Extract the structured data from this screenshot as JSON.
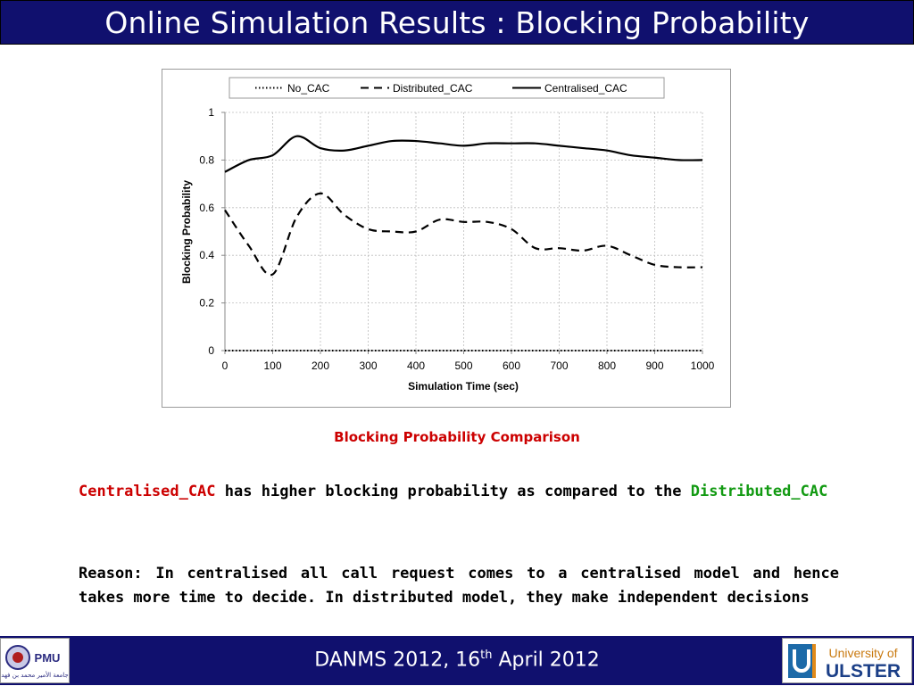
{
  "slide": {
    "title": "Online Simulation Results : Blocking Probability",
    "caption": "Blocking Probability Comparison",
    "para1_red": "Centralised_CAC",
    "para1_mid": "has higher blocking probability as compared to the",
    "para1_green": "Distributed_CAC",
    "para2": "Reason: In centralised all call request comes to a centralised model and hence takes more time to decide. In distributed model, they make independent decisions",
    "footer_main": "DANMS 2012, 16",
    "footer_sup": "th",
    "footer_tail": " April 2012",
    "logo_left": {
      "label": "PMU",
      "arabic": "جامعة الأمير محمد بن فهد",
      "icon": "pmu-emblem-icon"
    },
    "logo_right": {
      "line1": "University of",
      "line2": "ULSTER",
      "icon": "ulster-u-icon"
    }
  },
  "chart_data": {
    "type": "line",
    "title": "",
    "xlabel": "Simulation Time (sec)",
    "ylabel": "Blocking Probability",
    "xlim": [
      0,
      1000
    ],
    "ylim": [
      0,
      1
    ],
    "xticks": [
      "0",
      "100",
      "200",
      "300",
      "400",
      "500",
      "600",
      "700",
      "800",
      "900",
      "1000"
    ],
    "yticks": [
      "0",
      "0.2",
      "0.4",
      "0.6",
      "0.8",
      "1"
    ],
    "grid": true,
    "legend_position": "top",
    "x": [
      0,
      50,
      100,
      150,
      200,
      250,
      300,
      350,
      400,
      450,
      500,
      550,
      600,
      650,
      700,
      750,
      800,
      850,
      900,
      950,
      1000
    ],
    "series": [
      {
        "name": "No_CAC",
        "style": "dotted",
        "color": "#000000",
        "values": [
          0,
          0,
          0,
          0,
          0,
          0,
          0,
          0,
          0,
          0,
          0,
          0,
          0,
          0,
          0,
          0,
          0,
          0,
          0,
          0,
          0
        ]
      },
      {
        "name": "Distributed_CAC",
        "style": "dashed",
        "color": "#000000",
        "values": [
          0.59,
          0.44,
          0.32,
          0.56,
          0.66,
          0.57,
          0.51,
          0.5,
          0.5,
          0.55,
          0.54,
          0.54,
          0.51,
          0.43,
          0.43,
          0.42,
          0.44,
          0.4,
          0.36,
          0.35,
          0.35
        ]
      },
      {
        "name": "Centralised_CAC",
        "style": "solid",
        "color": "#000000",
        "values": [
          0.75,
          0.8,
          0.82,
          0.9,
          0.85,
          0.84,
          0.86,
          0.88,
          0.88,
          0.87,
          0.86,
          0.87,
          0.87,
          0.87,
          0.86,
          0.85,
          0.84,
          0.82,
          0.81,
          0.8,
          0.8
        ]
      }
    ]
  }
}
